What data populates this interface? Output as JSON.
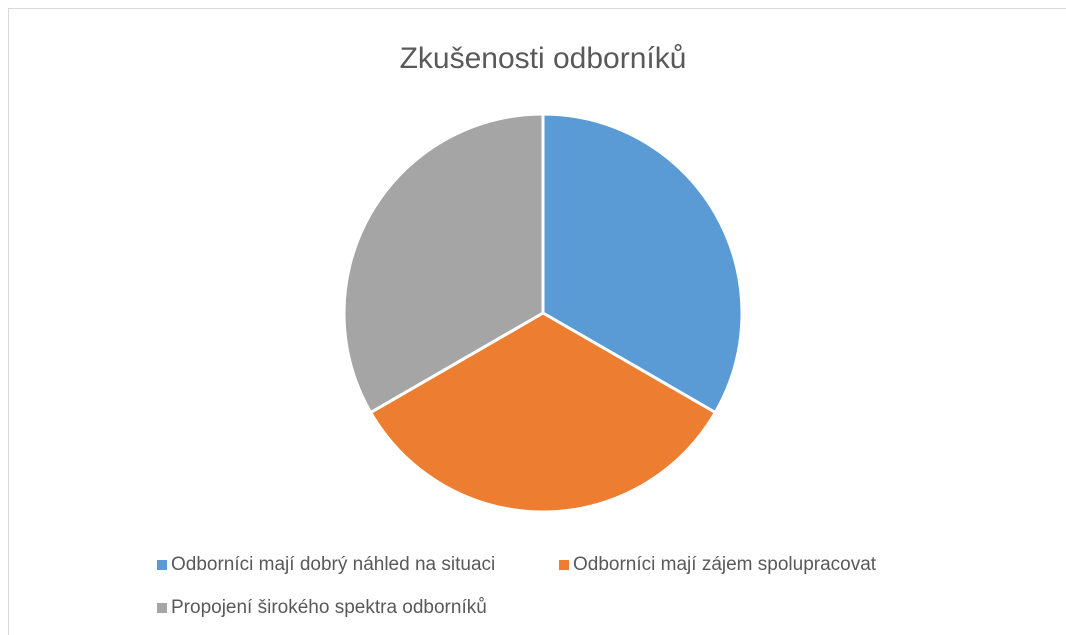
{
  "chart_data": {
    "type": "pie",
    "title": "Zkušenosti odborníků",
    "categories": [
      "Odborníci mají dobrý náhled na situaci",
      "Odborníci mají zájem spolupracovat",
      "Propojení širokého spektra odborníků"
    ],
    "values": [
      33.3,
      33.3,
      33.3
    ],
    "colors": [
      "#5b9bd5",
      "#ed7d31",
      "#a5a5a5"
    ],
    "legend": "bottom"
  }
}
